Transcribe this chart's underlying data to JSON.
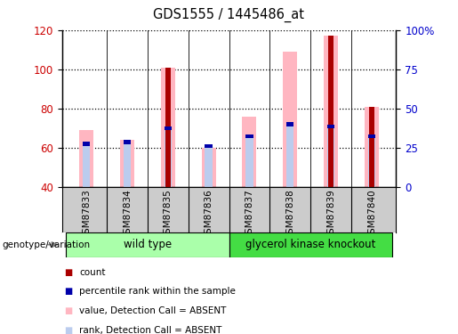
{
  "title": "GDS1555 / 1445486_at",
  "samples": [
    "GSM87833",
    "GSM87834",
    "GSM87835",
    "GSM87836",
    "GSM87837",
    "GSM87838",
    "GSM87839",
    "GSM87840"
  ],
  "count_values": [
    0,
    0,
    101,
    0,
    0,
    0,
    117,
    81
  ],
  "pink_value_top": [
    69,
    64,
    101,
    60,
    76,
    109,
    117,
    81
  ],
  "blue_rank_top": [
    63,
    64,
    71,
    62,
    67,
    73,
    72,
    67
  ],
  "ylim_left": [
    40,
    120
  ],
  "yticks_left": [
    40,
    60,
    80,
    100,
    120
  ],
  "yticks_right_labels": [
    "0",
    "25",
    "50",
    "75",
    "100%"
  ],
  "pink_color": "#FFB6C1",
  "light_blue_color": "#BBCCEE",
  "dark_red_color": "#AA0000",
  "blue_color": "#0000AA",
  "ylabel_left_color": "#CC0000",
  "ylabel_right_color": "#0000CC",
  "wt_color": "#AAFFAA",
  "gk_color": "#44DD44",
  "xlab_bg": "#CCCCCC",
  "genotype_label": "genotype/variation",
  "wt_label": "wild type",
  "gk_label": "glycerol kinase knockout"
}
